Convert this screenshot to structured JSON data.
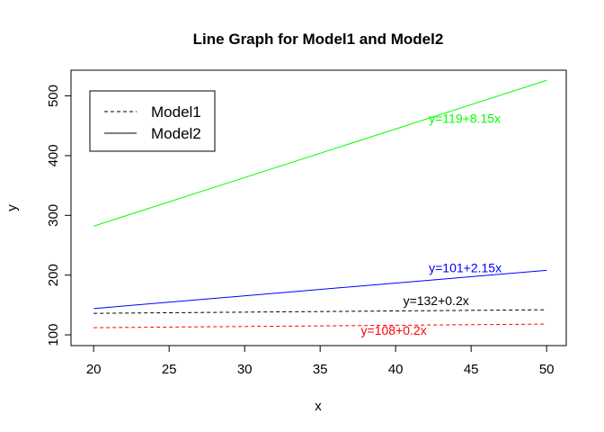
{
  "chart_data": {
    "type": "line",
    "title": "Line Graph for Model1 and Model2",
    "xlabel": "x",
    "ylabel": "y",
    "xlim": [
      18.5,
      51.3
    ],
    "ylim": [
      82,
      543
    ],
    "x_ticks": [
      20,
      25,
      30,
      35,
      40,
      45,
      50
    ],
    "y_ticks": [
      100,
      200,
      300,
      400,
      500
    ],
    "x": [
      20,
      50
    ],
    "series": [
      {
        "values": [
          282,
          526
        ],
        "color": "#00ff00",
        "dash": "solid"
      },
      {
        "values": [
          144,
          208
        ],
        "color": "#0000ff",
        "dash": "solid"
      },
      {
        "values": [
          136,
          142
        ],
        "color": "#000000",
        "dash": "dashed"
      },
      {
        "values": [
          112,
          118
        ],
        "color": "#ff0000",
        "dash": "dashed"
      }
    ],
    "annotations": [
      {
        "text": "y=119+8.15x",
        "x": 42.2,
        "y": 455,
        "color": "#00ff00"
      },
      {
        "text": "y=101+2.15x",
        "x": 42.2,
        "y": 205,
        "color": "#0000ff"
      },
      {
        "text": "y=132+0.2x",
        "x": 40.5,
        "y": 150,
        "color": "#000000"
      },
      {
        "text": "y=108+0.2x",
        "x": 37.7,
        "y": 100,
        "color": "#ff0000"
      }
    ],
    "legend": {
      "position": "top-left",
      "entries": [
        {
          "label": "Model1",
          "dash": "dashed",
          "color": "#000000"
        },
        {
          "label": "Model2",
          "dash": "solid",
          "color": "#000000"
        }
      ]
    },
    "grid": false
  }
}
